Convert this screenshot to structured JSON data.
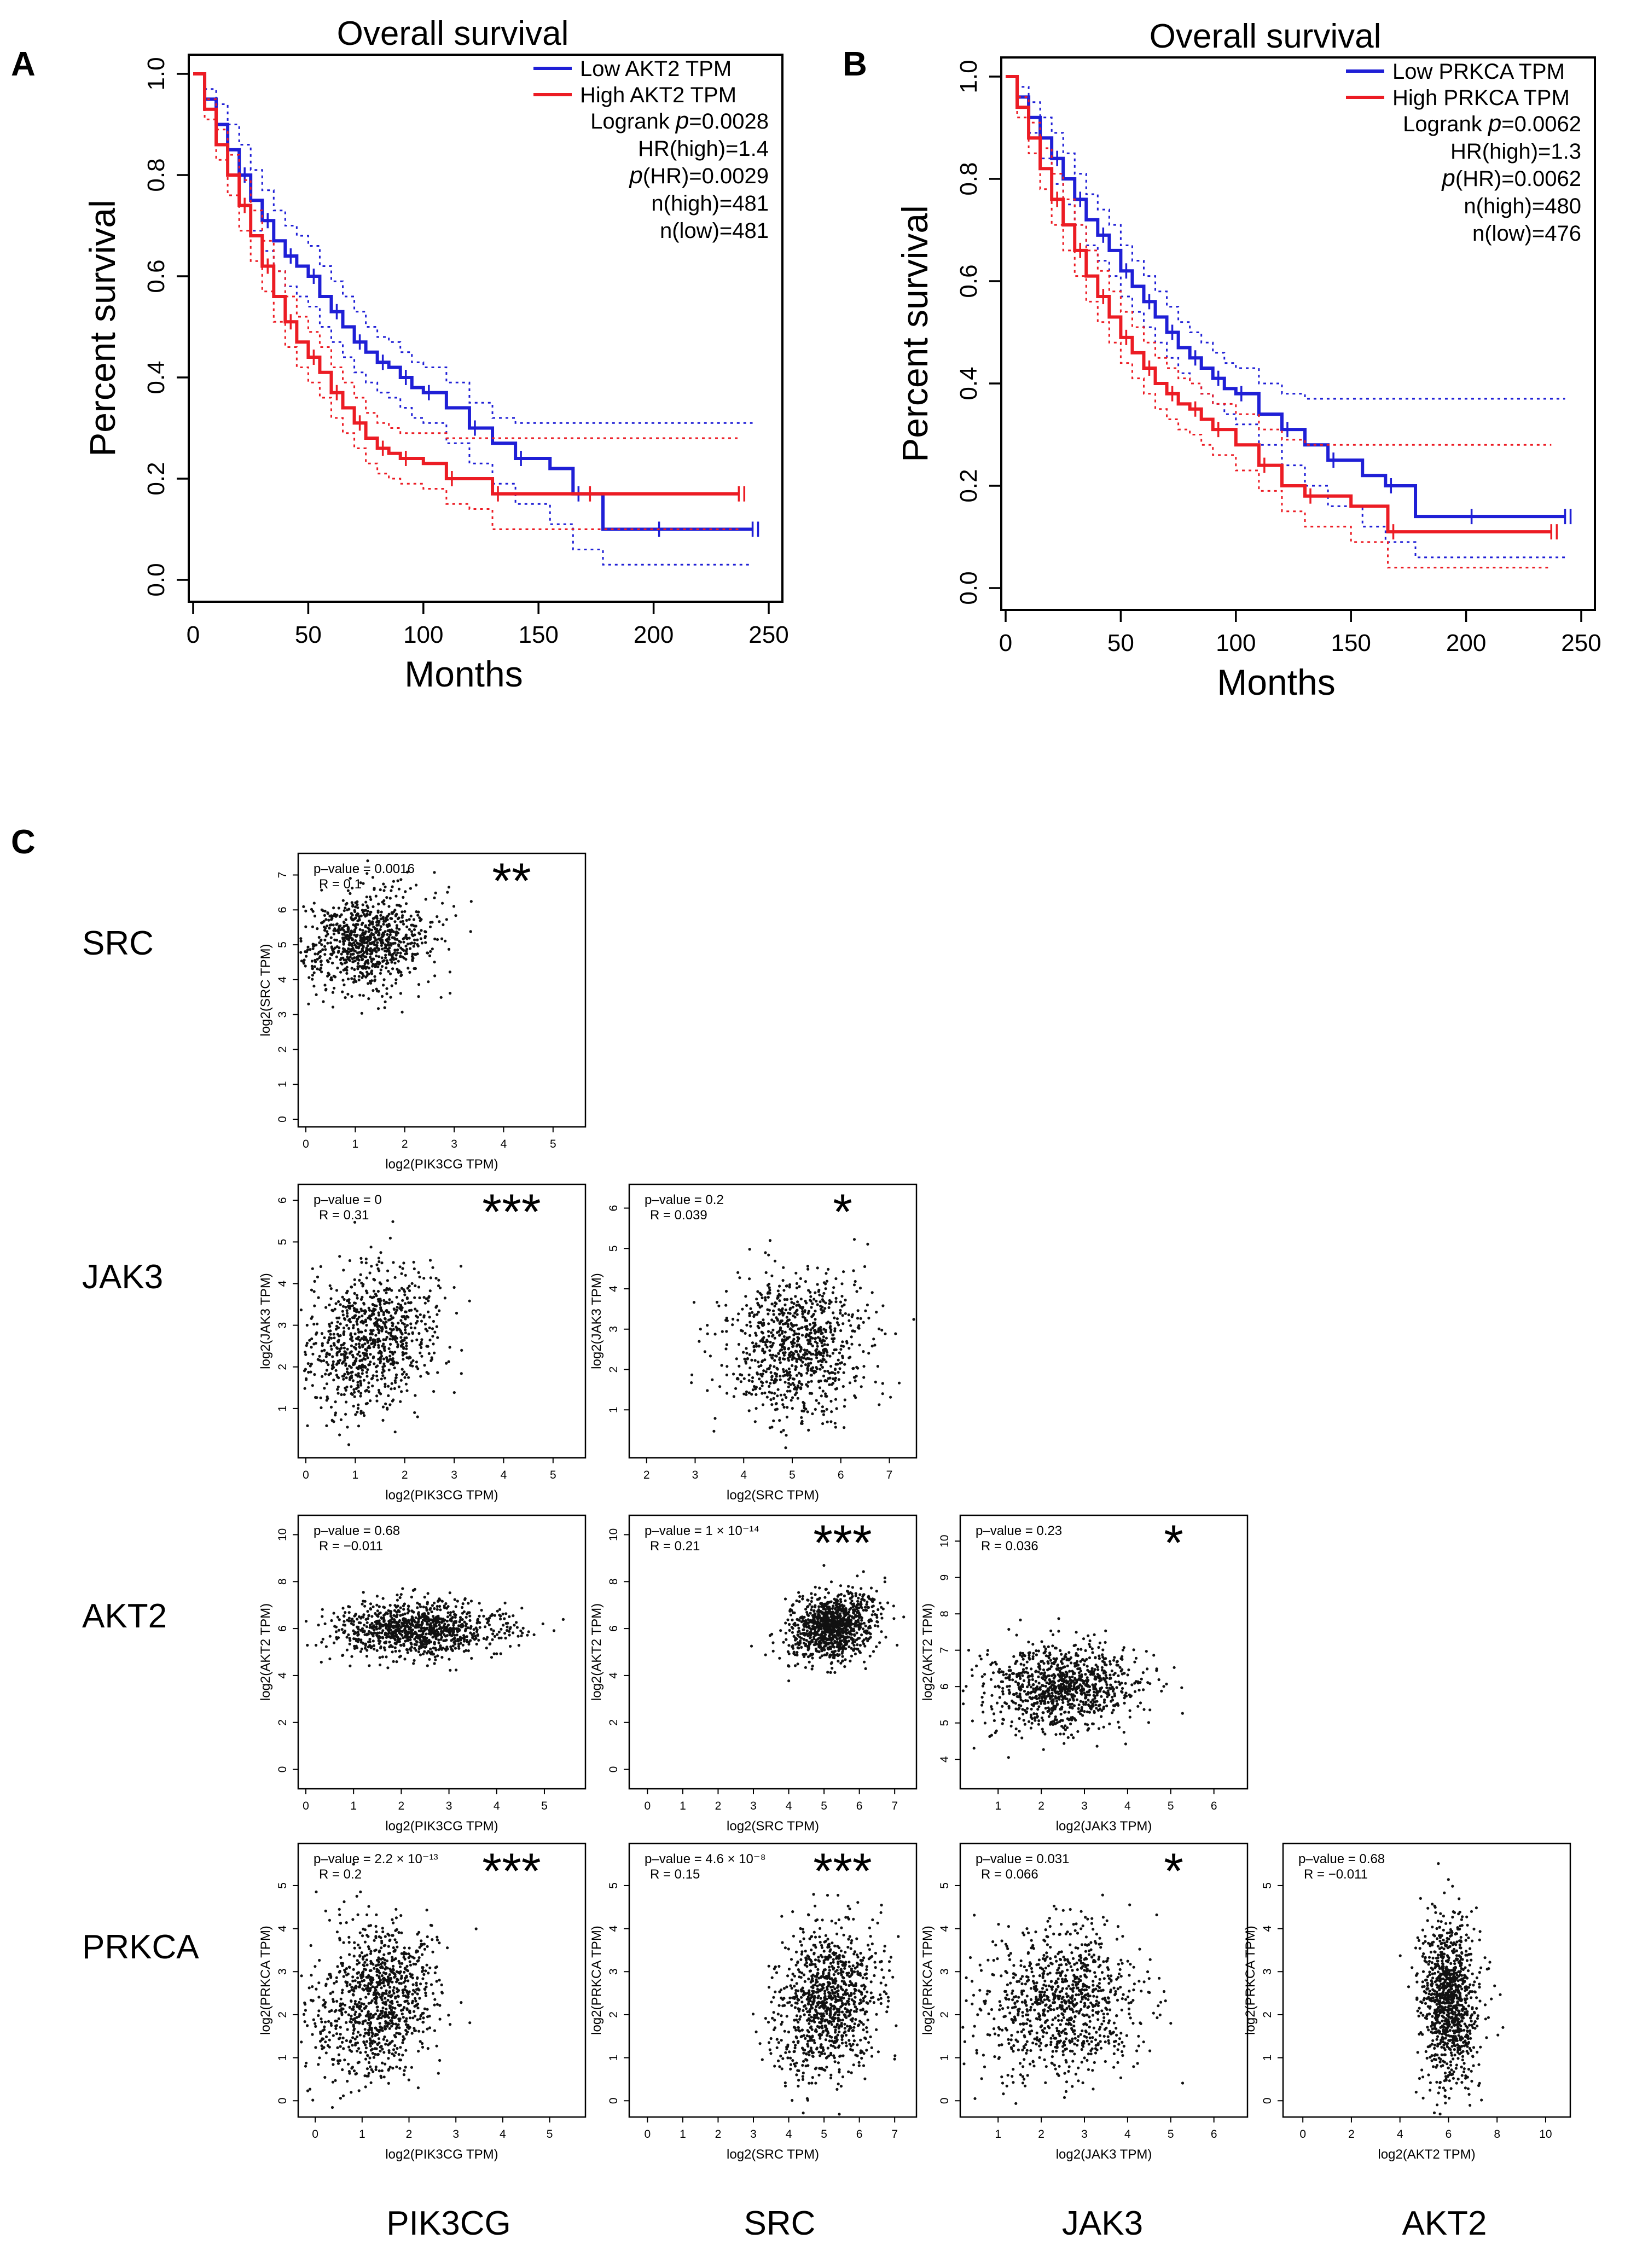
{
  "panel_labels": {
    "a": "A",
    "b": "B",
    "c": "C"
  },
  "colors": {
    "low": "#1f1fd6",
    "high": "#ec1c24",
    "axis": "#000000",
    "points": "#111111"
  },
  "chart_data": [
    {
      "panel": "A",
      "type": "line",
      "title": "Overall  survival",
      "xlabel": "Months",
      "ylabel": "Percent survival",
      "xlim": [
        0,
        250
      ],
      "ylim": [
        0,
        1
      ],
      "xticks": [
        "0",
        "50",
        "100",
        "150",
        "200",
        "250"
      ],
      "yticks": [
        "0.0",
        "0.2",
        "0.4",
        "0.6",
        "0.8",
        "1.0"
      ],
      "legend": [
        {
          "name": "Low AKT2 TPM",
          "color": "#1f1fd6"
        },
        {
          "name": "High AKT2 TPM",
          "color": "#ec1c24"
        }
      ],
      "stats": {
        "logrank_prefix": "Logrank ",
        "logrank_p": "=0.0028",
        "hr": "HR(high)=1.4",
        "p_hr": "(HR)=0.0029",
        "n_high": "n(high)=481",
        "n_low": "n(low)=481"
      },
      "series": [
        {
          "name": "Low AKT2 TPM",
          "color": "#1f1fd6",
          "x": [
            0,
            5,
            10,
            15,
            20,
            25,
            30,
            35,
            40,
            45,
            50,
            55,
            60,
            65,
            70,
            75,
            80,
            85,
            90,
            95,
            100,
            110,
            120,
            130,
            140,
            155,
            165,
            178,
            200,
            230,
            243
          ],
          "y": [
            1.0,
            0.95,
            0.9,
            0.85,
            0.8,
            0.75,
            0.71,
            0.67,
            0.64,
            0.62,
            0.6,
            0.56,
            0.53,
            0.5,
            0.47,
            0.45,
            0.43,
            0.42,
            0.4,
            0.38,
            0.37,
            0.34,
            0.3,
            0.27,
            0.24,
            0.22,
            0.17,
            0.1,
            0.1,
            0.1,
            0.1
          ],
          "upper": [
            1.0,
            0.97,
            0.94,
            0.9,
            0.86,
            0.81,
            0.77,
            0.73,
            0.7,
            0.68,
            0.66,
            0.62,
            0.59,
            0.56,
            0.53,
            0.5,
            0.48,
            0.47,
            0.45,
            0.43,
            0.42,
            0.39,
            0.35,
            0.32,
            0.31,
            0.31,
            0.31,
            0.31,
            0.31,
            0.31,
            0.31
          ],
          "lower": [
            1.0,
            0.93,
            0.86,
            0.8,
            0.74,
            0.69,
            0.65,
            0.61,
            0.58,
            0.56,
            0.54,
            0.5,
            0.47,
            0.44,
            0.41,
            0.39,
            0.37,
            0.36,
            0.34,
            0.32,
            0.31,
            0.27,
            0.23,
            0.19,
            0.15,
            0.11,
            0.06,
            0.03,
            0.03,
            0.03,
            0.03
          ]
        },
        {
          "name": "High AKT2 TPM",
          "color": "#ec1c24",
          "x": [
            0,
            5,
            10,
            15,
            20,
            25,
            30,
            35,
            40,
            45,
            50,
            55,
            60,
            65,
            70,
            75,
            80,
            85,
            90,
            100,
            110,
            120,
            130,
            150,
            170,
            200,
            237
          ],
          "y": [
            1.0,
            0.93,
            0.86,
            0.8,
            0.74,
            0.68,
            0.62,
            0.56,
            0.51,
            0.47,
            0.44,
            0.41,
            0.37,
            0.34,
            0.31,
            0.28,
            0.26,
            0.25,
            0.24,
            0.23,
            0.2,
            0.2,
            0.17,
            0.17,
            0.17,
            0.17,
            0.17
          ],
          "upper": [
            1.0,
            0.95,
            0.89,
            0.84,
            0.79,
            0.73,
            0.67,
            0.61,
            0.56,
            0.52,
            0.49,
            0.46,
            0.42,
            0.39,
            0.36,
            0.33,
            0.31,
            0.3,
            0.29,
            0.29,
            0.28,
            0.28,
            0.28,
            0.28,
            0.28,
            0.28,
            0.28
          ],
          "lower": [
            1.0,
            0.91,
            0.83,
            0.76,
            0.69,
            0.63,
            0.57,
            0.51,
            0.46,
            0.42,
            0.39,
            0.36,
            0.32,
            0.29,
            0.26,
            0.23,
            0.21,
            0.2,
            0.19,
            0.18,
            0.15,
            0.14,
            0.1,
            0.1,
            0.1,
            0.1,
            0.1
          ]
        }
      ]
    },
    {
      "panel": "B",
      "type": "line",
      "title": "Overall  survival",
      "xlabel": "Months",
      "ylabel": "Percent survival",
      "xlim": [
        0,
        250
      ],
      "ylim": [
        0,
        1
      ],
      "xticks": [
        "0",
        "50",
        "100",
        "150",
        "200",
        "250"
      ],
      "yticks": [
        "0.0",
        "0.2",
        "0.4",
        "0.6",
        "0.8",
        "1.0"
      ],
      "legend": [
        {
          "name": "Low PRKCA TPM",
          "color": "#1f1fd6"
        },
        {
          "name": "High PRKCA TPM",
          "color": "#ec1c24"
        }
      ],
      "stats": {
        "logrank_prefix": "Logrank ",
        "logrank_p": "=0.0062",
        "hr": "HR(high)=1.3",
        "p_hr": "(HR)=0.0062",
        "n_high": "n(high)=480",
        "n_low": "n(low)=476"
      },
      "series": [
        {
          "name": "Low PRKCA TPM",
          "color": "#1f1fd6",
          "x": [
            0,
            5,
            10,
            15,
            20,
            25,
            30,
            35,
            40,
            45,
            50,
            55,
            60,
            65,
            70,
            75,
            80,
            85,
            90,
            95,
            100,
            110,
            120,
            130,
            140,
            155,
            165,
            178,
            200,
            230,
            243
          ],
          "y": [
            1.0,
            0.96,
            0.92,
            0.88,
            0.84,
            0.8,
            0.76,
            0.72,
            0.69,
            0.66,
            0.62,
            0.59,
            0.56,
            0.53,
            0.5,
            0.47,
            0.45,
            0.43,
            0.41,
            0.39,
            0.38,
            0.34,
            0.31,
            0.28,
            0.25,
            0.22,
            0.2,
            0.14,
            0.14,
            0.14,
            0.14
          ],
          "upper": [
            1.0,
            0.98,
            0.95,
            0.92,
            0.89,
            0.85,
            0.81,
            0.77,
            0.74,
            0.71,
            0.67,
            0.64,
            0.61,
            0.58,
            0.55,
            0.52,
            0.5,
            0.48,
            0.46,
            0.44,
            0.43,
            0.4,
            0.38,
            0.37,
            0.37,
            0.37,
            0.37,
            0.37,
            0.37,
            0.37,
            0.37
          ],
          "lower": [
            1.0,
            0.94,
            0.89,
            0.84,
            0.79,
            0.75,
            0.71,
            0.67,
            0.64,
            0.61,
            0.57,
            0.54,
            0.51,
            0.48,
            0.45,
            0.42,
            0.4,
            0.38,
            0.36,
            0.34,
            0.32,
            0.28,
            0.24,
            0.2,
            0.16,
            0.12,
            0.09,
            0.06,
            0.06,
            0.06,
            0.06
          ]
        },
        {
          "name": "High PRKCA TPM",
          "color": "#ec1c24",
          "x": [
            0,
            5,
            10,
            15,
            20,
            25,
            30,
            35,
            40,
            45,
            50,
            55,
            60,
            65,
            70,
            75,
            80,
            85,
            90,
            100,
            110,
            120,
            130,
            150,
            166,
            200,
            237
          ],
          "y": [
            1.0,
            0.94,
            0.88,
            0.82,
            0.76,
            0.71,
            0.66,
            0.61,
            0.57,
            0.53,
            0.49,
            0.46,
            0.43,
            0.4,
            0.38,
            0.36,
            0.35,
            0.33,
            0.31,
            0.28,
            0.24,
            0.2,
            0.18,
            0.16,
            0.11,
            0.11,
            0.11
          ],
          "upper": [
            1.0,
            0.96,
            0.91,
            0.86,
            0.81,
            0.76,
            0.71,
            0.66,
            0.62,
            0.58,
            0.54,
            0.51,
            0.48,
            0.45,
            0.43,
            0.41,
            0.4,
            0.38,
            0.36,
            0.34,
            0.31,
            0.29,
            0.28,
            0.28,
            0.28,
            0.28,
            0.28
          ],
          "lower": [
            1.0,
            0.92,
            0.85,
            0.78,
            0.71,
            0.66,
            0.61,
            0.56,
            0.52,
            0.48,
            0.44,
            0.41,
            0.38,
            0.35,
            0.33,
            0.31,
            0.3,
            0.28,
            0.26,
            0.23,
            0.19,
            0.15,
            0.12,
            0.09,
            0.04,
            0.04,
            0.04
          ]
        }
      ]
    },
    {
      "panel": "C",
      "type": "scatter",
      "row_labels": [
        "SRC",
        "JAK3",
        "AKT2",
        "PRKCA"
      ],
      "col_labels": [
        "PIK3CG",
        "SRC",
        "JAK3",
        "AKT2"
      ],
      "plots": [
        {
          "row": 0,
          "col": 0,
          "xlabel": "log2(PIK3CG TPM)",
          "ylabel": "log2(SRC TPM)",
          "pvalue": "p–value = 0.0016",
          "r": "R = 0.1",
          "stars": "**",
          "xlim": [
            0,
            5.5
          ],
          "ylim": [
            0,
            7.4
          ],
          "xticks": [
            "0",
            "1",
            "2",
            "3",
            "4",
            "5"
          ],
          "yticks": [
            "0",
            "1",
            "2",
            "3",
            "4",
            "5",
            "6",
            "7"
          ],
          "cloud": {
            "mx": 1.2,
            "sx": 0.7,
            "my": 5.1,
            "sy": 0.7,
            "n": 900,
            "corr": 0.1
          }
        },
        {
          "row": 1,
          "col": 0,
          "xlabel": "log2(PIK3CG TPM)",
          "ylabel": "log2(JAK3 TPM)",
          "pvalue": "p–value = 0",
          "r": "R = 0.31",
          "stars": "***",
          "xlim": [
            0,
            5.5
          ],
          "ylim": [
            0,
            6.2
          ],
          "xticks": [
            "0",
            "1",
            "2",
            "3",
            "4",
            "5"
          ],
          "yticks": [
            "1",
            "2",
            "3",
            "4",
            "5",
            "6"
          ],
          "cloud": {
            "mx": 1.3,
            "sx": 0.7,
            "my": 2.6,
            "sy": 0.9,
            "n": 900,
            "corr": 0.31
          }
        },
        {
          "row": 1,
          "col": 1,
          "xlabel": "log2(SRC TPM)",
          "ylabel": "log2(JAK3 TPM)",
          "pvalue": "p–value = 0.2",
          "r": "R = 0.039",
          "stars": "*",
          "xlim": [
            1.8,
            7.4
          ],
          "ylim": [
            0,
            6.4
          ],
          "xticks": [
            "2",
            "3",
            "4",
            "5",
            "6",
            "7"
          ],
          "yticks": [
            "1",
            "2",
            "3",
            "4",
            "5",
            "6"
          ],
          "cloud": {
            "mx": 5.1,
            "sx": 0.7,
            "my": 2.6,
            "sy": 0.9,
            "n": 900,
            "corr": 0.04
          }
        },
        {
          "row": 2,
          "col": 0,
          "xlabel": "log2(PIK3CG TPM)",
          "ylabel": "log2(AKT2 TPM)",
          "pvalue": "p–value = 0.68",
          "r": "R = −0.011",
          "stars": "",
          "xlim": [
            0,
            5.7
          ],
          "ylim": [
            -0.5,
            10.5
          ],
          "xticks": [
            "0",
            "1",
            "2",
            "3",
            "4",
            "5"
          ],
          "yticks": [
            "0",
            "2",
            "4",
            "6",
            "8",
            "10"
          ],
          "cloud": {
            "mx": 2.3,
            "sx": 0.9,
            "my": 6.0,
            "sy": 0.6,
            "n": 1000,
            "corr": 0.0
          }
        },
        {
          "row": 2,
          "col": 1,
          "xlabel": "log2(SRC TPM)",
          "ylabel": "log2(AKT2 TPM)",
          "pvalue": "p–value = 1 × 10⁻¹⁴",
          "r": "R = 0.21",
          "stars": "***",
          "xlim": [
            -0.3,
            7.4
          ],
          "ylim": [
            -0.5,
            10.5
          ],
          "xticks": [
            "0",
            "1",
            "2",
            "3",
            "4",
            "5",
            "6",
            "7"
          ],
          "yticks": [
            "0",
            "2",
            "4",
            "6",
            "8",
            "10"
          ],
          "cloud": {
            "mx": 5.2,
            "sx": 0.6,
            "my": 6.1,
            "sy": 0.7,
            "n": 1000,
            "corr": 0.21
          }
        },
        {
          "row": 2,
          "col": 2,
          "xlabel": "log2(JAK3 TPM)",
          "ylabel": "log2(AKT2 TPM)",
          "pvalue": "p–value = 0.23",
          "r": "R = 0.036",
          "stars": "*",
          "xlim": [
            0.3,
            6.6
          ],
          "ylim": [
            3.4,
            10.5
          ],
          "xticks": [
            "1",
            "2",
            "3",
            "4",
            "5",
            "6"
          ],
          "yticks": [
            "4",
            "5",
            "6",
            "7",
            "8",
            "9",
            "10"
          ],
          "cloud": {
            "mx": 2.5,
            "sx": 0.9,
            "my": 6.0,
            "sy": 0.6,
            "n": 950,
            "corr": 0.04
          }
        },
        {
          "row": 3,
          "col": 0,
          "xlabel": "log2(PIK3CG TPM)",
          "ylabel": "log2(PRKCA TPM)",
          "pvalue": "p–value = 2.2 × 10⁻¹³",
          "r": "R = 0.2",
          "stars": "***",
          "xlim": [
            -0.2,
            5.6
          ],
          "ylim": [
            -0.2,
            5.8
          ],
          "xticks": [
            "0",
            "1",
            "2",
            "3",
            "4",
            "5"
          ],
          "yticks": [
            "0",
            "1",
            "2",
            "3",
            "4",
            "5"
          ],
          "cloud": {
            "mx": 1.3,
            "sx": 0.7,
            "my": 2.3,
            "sy": 0.9,
            "n": 1000,
            "corr": 0.2
          }
        },
        {
          "row": 3,
          "col": 1,
          "xlabel": "log2(SRC TPM)",
          "ylabel": "log2(PRKCA TPM)",
          "pvalue": "p–value = 4.6 × 10⁻⁸",
          "r": "R = 0.15",
          "stars": "***",
          "xlim": [
            -0.3,
            7.4
          ],
          "ylim": [
            -0.2,
            5.8
          ],
          "xticks": [
            "0",
            "1",
            "2",
            "3",
            "4",
            "5",
            "6",
            "7"
          ],
          "yticks": [
            "0",
            "1",
            "2",
            "3",
            "4",
            "5"
          ],
          "cloud": {
            "mx": 5.1,
            "sx": 0.7,
            "my": 2.3,
            "sy": 0.9,
            "n": 1000,
            "corr": 0.15
          }
        },
        {
          "row": 3,
          "col": 2,
          "xlabel": "log2(JAK3 TPM)",
          "ylabel": "log2(PRKCA TPM)",
          "pvalue": "p–value = 0.031",
          "r": "R = 0.066",
          "stars": "*",
          "xlim": [
            0.3,
            6.6
          ],
          "ylim": [
            -0.2,
            5.8
          ],
          "xticks": [
            "1",
            "2",
            "3",
            "4",
            "5",
            "6"
          ],
          "yticks": [
            "0",
            "1",
            "2",
            "3",
            "4",
            "5"
          ],
          "cloud": {
            "mx": 2.5,
            "sx": 0.9,
            "my": 2.3,
            "sy": 0.9,
            "n": 950,
            "corr": 0.07
          }
        },
        {
          "row": 3,
          "col": 3,
          "xlabel": "log2(AKT2 TPM)",
          "ylabel": "log2(PRKCA TPM)",
          "pvalue": "p–value = 0.68",
          "r": "R = −0.011",
          "stars": "",
          "xlim": [
            -0.5,
            10.7
          ],
          "ylim": [
            -0.2,
            5.8
          ],
          "xticks": [
            "0",
            "2",
            "4",
            "6",
            "8",
            "10"
          ],
          "yticks": [
            "0",
            "1",
            "2",
            "3",
            "4",
            "5"
          ],
          "cloud": {
            "mx": 6.0,
            "sx": 0.6,
            "my": 2.3,
            "sy": 1.0,
            "n": 1000,
            "corr": 0.0
          }
        }
      ]
    }
  ]
}
